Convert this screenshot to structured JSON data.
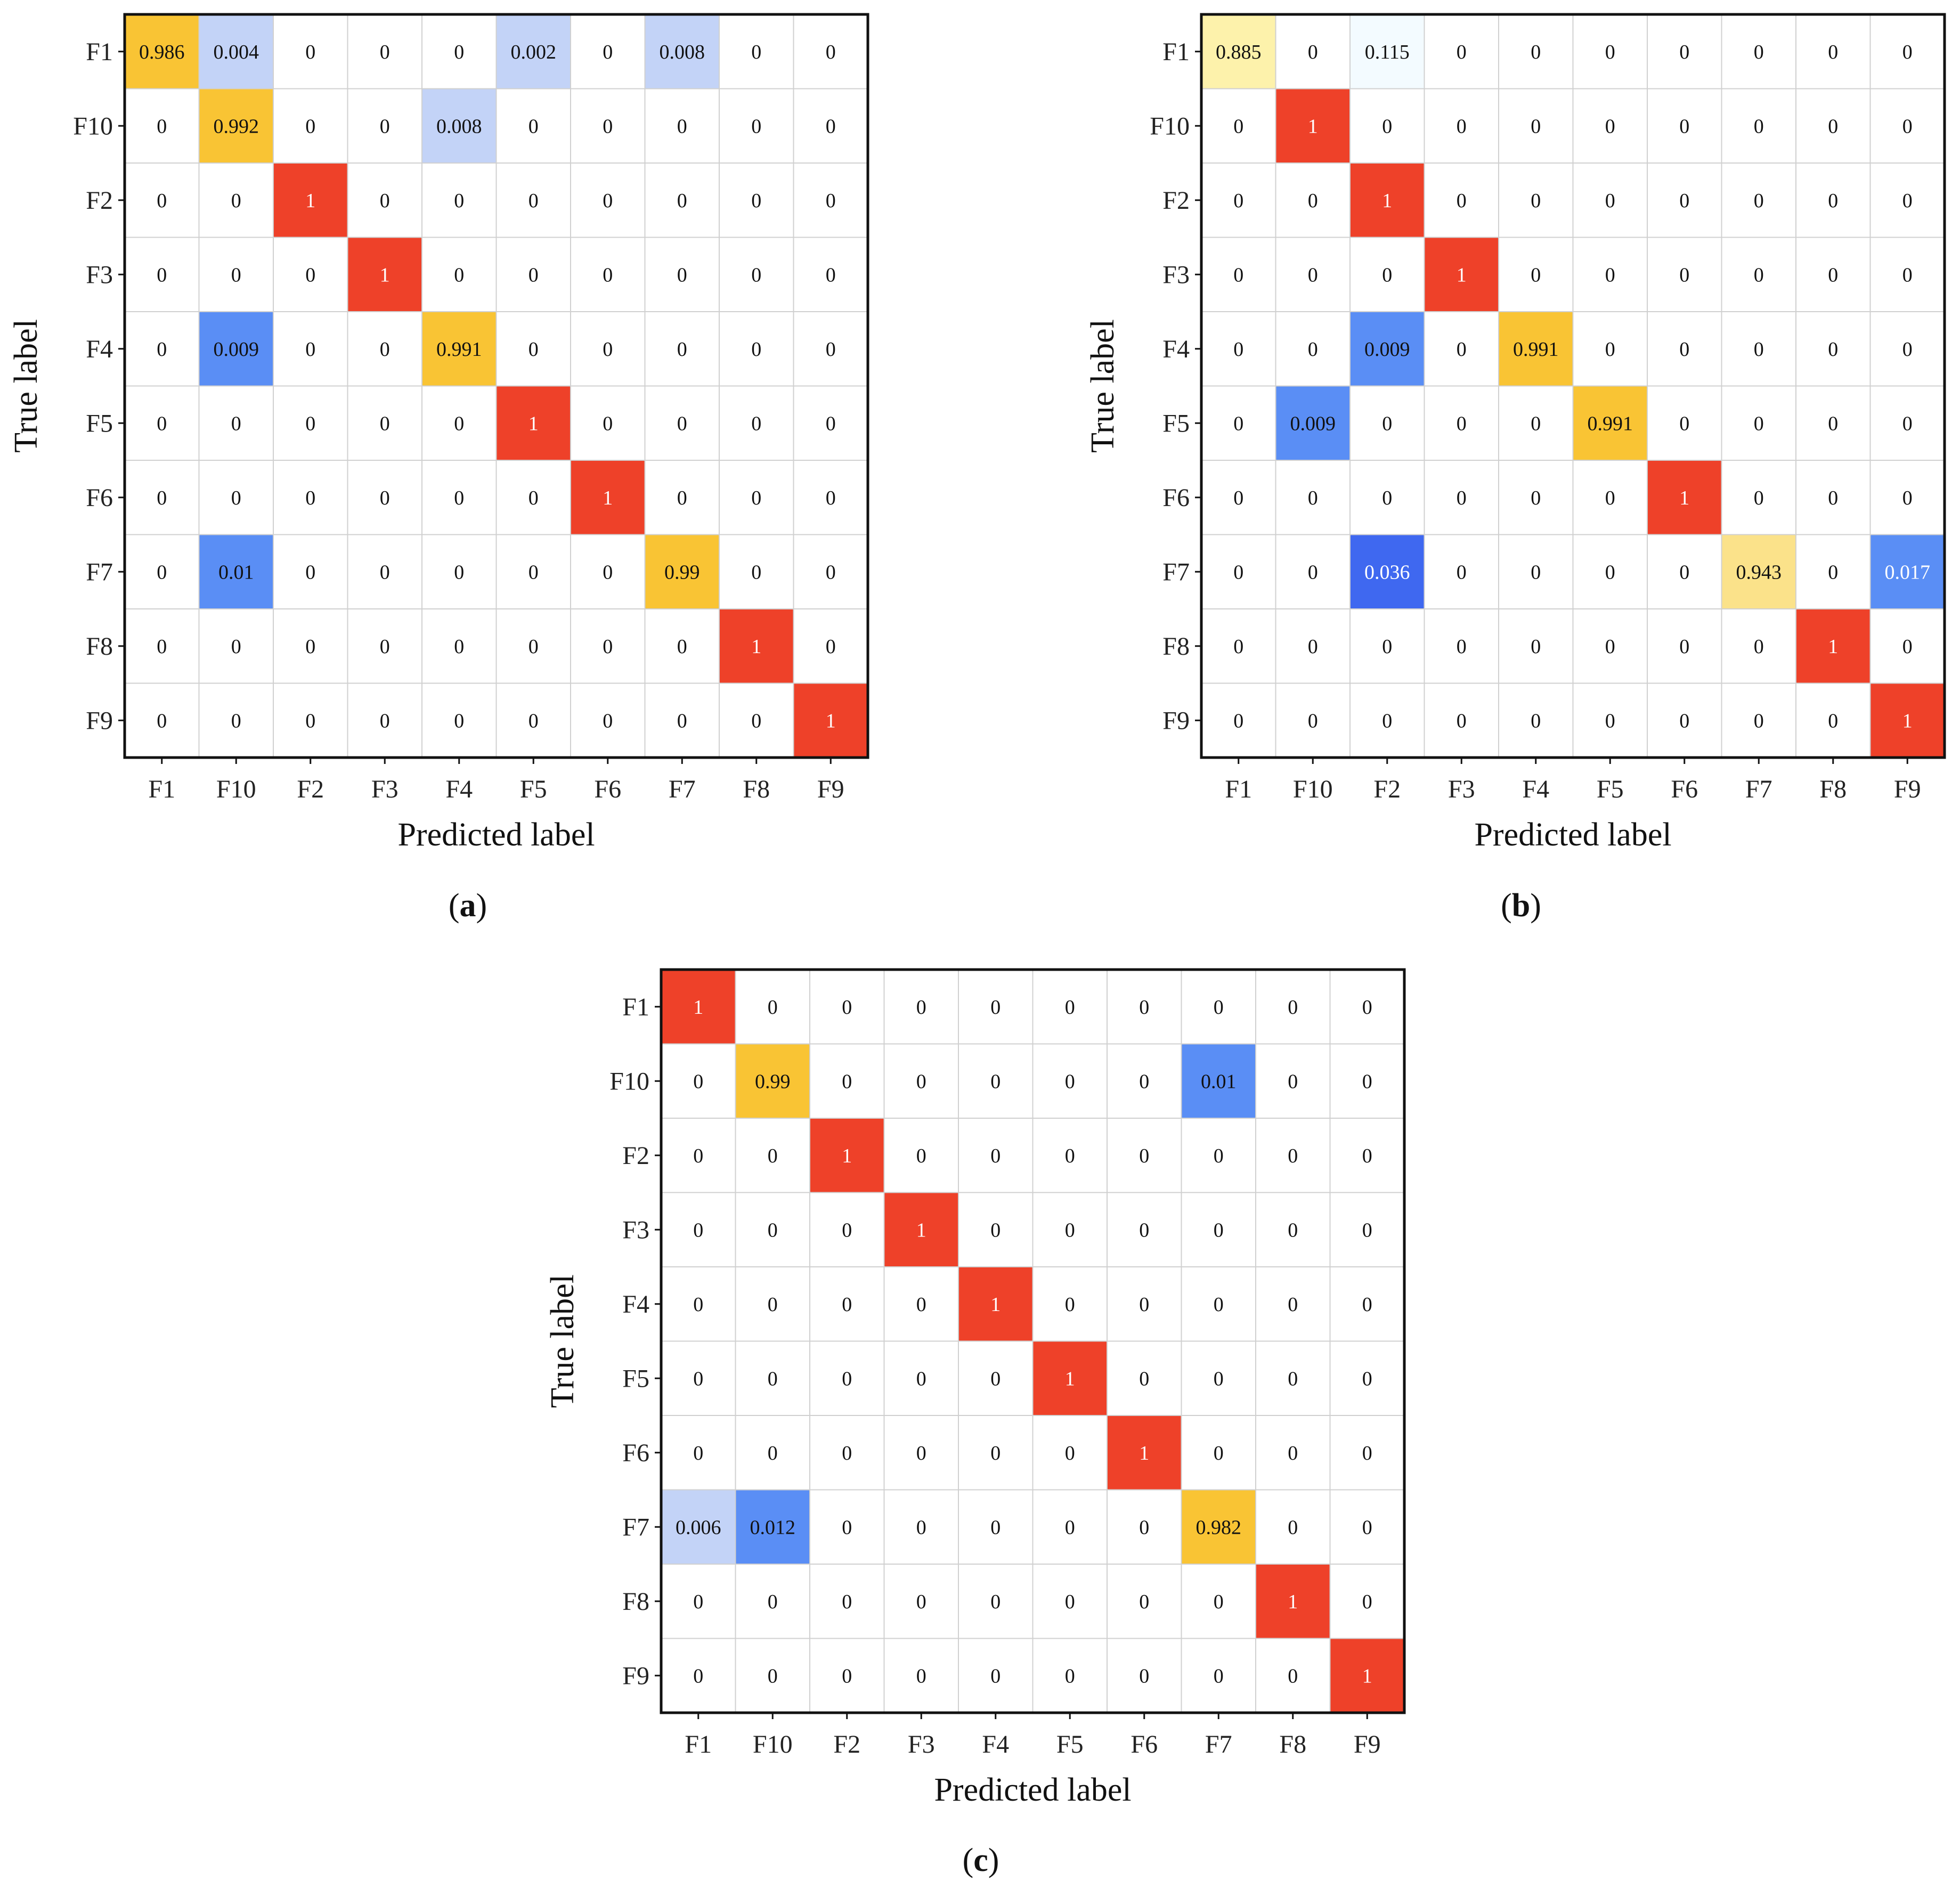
{
  "figure": {
    "colors": {
      "grid": "#d0d0d0",
      "frame": "#111111",
      "text_dark": "#111111",
      "text_light": "#ffffff",
      "scale": [
        "#ffffff",
        "#c3d3f7",
        "#5a8ef5",
        "#3f68f0",
        "#fdf2ab",
        "#fbe28a",
        "#f9c434",
        "#ee4129"
      ]
    }
  },
  "chart_data": [
    {
      "type": "heatmap",
      "caption_letter": "a",
      "caption_open": "(",
      "caption_close": ")",
      "xlabel": "Predicted label",
      "ylabel": "True label",
      "x_categories": [
        "F1",
        "F10",
        "F2",
        "F3",
        "F4",
        "F5",
        "F6",
        "F7",
        "F8",
        "F9"
      ],
      "y_categories": [
        "F1",
        "F10",
        "F2",
        "F3",
        "F4",
        "F5",
        "F6",
        "F7",
        "F8",
        "F9"
      ],
      "values": [
        [
          0.986,
          0.004,
          0,
          0,
          0,
          0.002,
          0,
          0.008,
          0,
          0
        ],
        [
          0,
          0.992,
          0,
          0,
          0.008,
          0,
          0,
          0,
          0,
          0
        ],
        [
          0,
          0,
          1,
          0,
          0,
          0,
          0,
          0,
          0,
          0
        ],
        [
          0,
          0,
          0,
          1,
          0,
          0,
          0,
          0,
          0,
          0
        ],
        [
          0,
          0.009,
          0,
          0,
          0.991,
          0,
          0,
          0,
          0,
          0
        ],
        [
          0,
          0,
          0,
          0,
          0,
          1,
          0,
          0,
          0,
          0
        ],
        [
          0,
          0,
          0,
          0,
          0,
          0,
          1,
          0,
          0,
          0
        ],
        [
          0,
          0.01,
          0,
          0,
          0,
          0,
          0,
          0.99,
          0,
          0
        ],
        [
          0,
          0,
          0,
          0,
          0,
          0,
          0,
          0,
          1,
          0
        ],
        [
          0,
          0,
          0,
          0,
          0,
          0,
          0,
          0,
          0,
          1
        ]
      ],
      "labels": [
        [
          "0.986",
          "0.004",
          "0",
          "0",
          "0",
          "0.002",
          "0",
          "0.008",
          "0",
          "0"
        ],
        [
          "0",
          "0.992",
          "0",
          "0",
          "0.008",
          "0",
          "0",
          "0",
          "0",
          "0"
        ],
        [
          "0",
          "0",
          "1",
          "0",
          "0",
          "0",
          "0",
          "0",
          "0",
          "0"
        ],
        [
          "0",
          "0",
          "0",
          "1",
          "0",
          "0",
          "0",
          "0",
          "0",
          "0"
        ],
        [
          "0",
          "0.009",
          "0",
          "0",
          "0.991",
          "0",
          "0",
          "0",
          "0",
          "0"
        ],
        [
          "0",
          "0",
          "0",
          "0",
          "0",
          "1",
          "0",
          "0",
          "0",
          "0"
        ],
        [
          "0",
          "0",
          "0",
          "0",
          "0",
          "0",
          "1",
          "0",
          "0",
          "0"
        ],
        [
          "0",
          "0.01",
          "0",
          "0",
          "0",
          "0",
          "0",
          "0.99",
          "0",
          "0"
        ],
        [
          "0",
          "0",
          "0",
          "0",
          "0",
          "0",
          "0",
          "0",
          "1",
          "0"
        ],
        [
          "0",
          "0",
          "0",
          "0",
          "0",
          "0",
          "0",
          "0",
          "0",
          "1"
        ]
      ]
    },
    {
      "type": "heatmap",
      "caption_letter": "b",
      "caption_open": "(",
      "caption_close": ")",
      "xlabel": "Predicted label",
      "ylabel": "True label",
      "x_categories": [
        "F1",
        "F10",
        "F2",
        "F3",
        "F4",
        "F5",
        "F6",
        "F7",
        "F8",
        "F9"
      ],
      "y_categories": [
        "F1",
        "F10",
        "F2",
        "F3",
        "F4",
        "F5",
        "F6",
        "F7",
        "F8",
        "F9"
      ],
      "values": [
        [
          0.885,
          0,
          0.115,
          0,
          0,
          0,
          0,
          0,
          0,
          0
        ],
        [
          0,
          1,
          0,
          0,
          0,
          0,
          0,
          0,
          0,
          0
        ],
        [
          0,
          0,
          1,
          0,
          0,
          0,
          0,
          0,
          0,
          0
        ],
        [
          0,
          0,
          0,
          1,
          0,
          0,
          0,
          0,
          0,
          0
        ],
        [
          0,
          0,
          0.009,
          0,
          0.991,
          0,
          0,
          0,
          0,
          0
        ],
        [
          0,
          0.009,
          0,
          0,
          0,
          0.991,
          0,
          0,
          0,
          0
        ],
        [
          0,
          0,
          0,
          0,
          0,
          0,
          1,
          0,
          0,
          0
        ],
        [
          0,
          0,
          0.036,
          0,
          0,
          0,
          0,
          0.943,
          0,
          0.017
        ],
        [
          0,
          0,
          0,
          0,
          0,
          0,
          0,
          0,
          1,
          0
        ],
        [
          0,
          0,
          0,
          0,
          0,
          0,
          0,
          0,
          0,
          1
        ]
      ],
      "labels": [
        [
          "0.885",
          "0",
          "0.115",
          "0",
          "0",
          "0",
          "0",
          "0",
          "0",
          "0"
        ],
        [
          "0",
          "1",
          "0",
          "0",
          "0",
          "0",
          "0",
          "0",
          "0",
          "0"
        ],
        [
          "0",
          "0",
          "1",
          "0",
          "0",
          "0",
          "0",
          "0",
          "0",
          "0"
        ],
        [
          "0",
          "0",
          "0",
          "1",
          "0",
          "0",
          "0",
          "0",
          "0",
          "0"
        ],
        [
          "0",
          "0",
          "0.009",
          "0",
          "0.991",
          "0",
          "0",
          "0",
          "0",
          "0"
        ],
        [
          "0",
          "0.009",
          "0",
          "0",
          "0",
          "0.991",
          "0",
          "0",
          "0",
          "0"
        ],
        [
          "0",
          "0",
          "0",
          "0",
          "0",
          "0",
          "1",
          "0",
          "0",
          "0"
        ],
        [
          "0",
          "0",
          "0.036",
          "0",
          "0",
          "0",
          "0",
          "0.943",
          "0",
          "0.017"
        ],
        [
          "0",
          "0",
          "0",
          "0",
          "0",
          "0",
          "0",
          "0",
          "1",
          "0"
        ],
        [
          "0",
          "0",
          "0",
          "0",
          "0",
          "0",
          "0",
          "0",
          "0",
          "1"
        ]
      ]
    },
    {
      "type": "heatmap",
      "caption_letter": "c",
      "caption_open": "(",
      "caption_close": ")",
      "xlabel": "Predicted label",
      "ylabel": "True label",
      "x_categories": [
        "F1",
        "F10",
        "F2",
        "F3",
        "F4",
        "F5",
        "F6",
        "F7",
        "F8",
        "F9"
      ],
      "y_categories": [
        "F1",
        "F10",
        "F2",
        "F3",
        "F4",
        "F5",
        "F6",
        "F7",
        "F8",
        "F9"
      ],
      "values": [
        [
          1,
          0,
          0,
          0,
          0,
          0,
          0,
          0,
          0,
          0
        ],
        [
          0,
          0.99,
          0,
          0,
          0,
          0,
          0,
          0.01,
          0,
          0
        ],
        [
          0,
          0,
          1,
          0,
          0,
          0,
          0,
          0,
          0,
          0
        ],
        [
          0,
          0,
          0,
          1,
          0,
          0,
          0,
          0,
          0,
          0
        ],
        [
          0,
          0,
          0,
          0,
          1,
          0,
          0,
          0,
          0,
          0
        ],
        [
          0,
          0,
          0,
          0,
          0,
          1,
          0,
          0,
          0,
          0
        ],
        [
          0,
          0,
          0,
          0,
          0,
          0,
          1,
          0,
          0,
          0
        ],
        [
          0.006,
          0.012,
          0,
          0,
          0,
          0,
          0,
          0.982,
          0,
          0
        ],
        [
          0,
          0,
          0,
          0,
          0,
          0,
          0,
          0,
          1,
          0
        ],
        [
          0,
          0,
          0,
          0,
          0,
          0,
          0,
          0,
          0,
          1
        ]
      ],
      "labels": [
        [
          "1",
          "0",
          "0",
          "0",
          "0",
          "0",
          "0",
          "0",
          "0",
          "0"
        ],
        [
          "0",
          "0.99",
          "0",
          "0",
          "0",
          "0",
          "0",
          "0.01",
          "0",
          "0"
        ],
        [
          "0",
          "0",
          "1",
          "0",
          "0",
          "0",
          "0",
          "0",
          "0",
          "0"
        ],
        [
          "0",
          "0",
          "0",
          "1",
          "0",
          "0",
          "0",
          "0",
          "0",
          "0"
        ],
        [
          "0",
          "0",
          "0",
          "0",
          "1",
          "0",
          "0",
          "0",
          "0",
          "0"
        ],
        [
          "0",
          "0",
          "0",
          "0",
          "0",
          "1",
          "0",
          "0",
          "0",
          "0"
        ],
        [
          "0",
          "0",
          "0",
          "0",
          "0",
          "0",
          "1",
          "0",
          "0",
          "0"
        ],
        [
          "0.006",
          "0.012",
          "0",
          "0",
          "0",
          "0",
          "0",
          "0.982",
          "0",
          "0"
        ],
        [
          "0",
          "0",
          "0",
          "0",
          "0",
          "0",
          "0",
          "0",
          "1",
          "0"
        ],
        [
          "0",
          "0",
          "0",
          "0",
          "0",
          "0",
          "0",
          "0",
          "0",
          "1"
        ]
      ]
    }
  ]
}
